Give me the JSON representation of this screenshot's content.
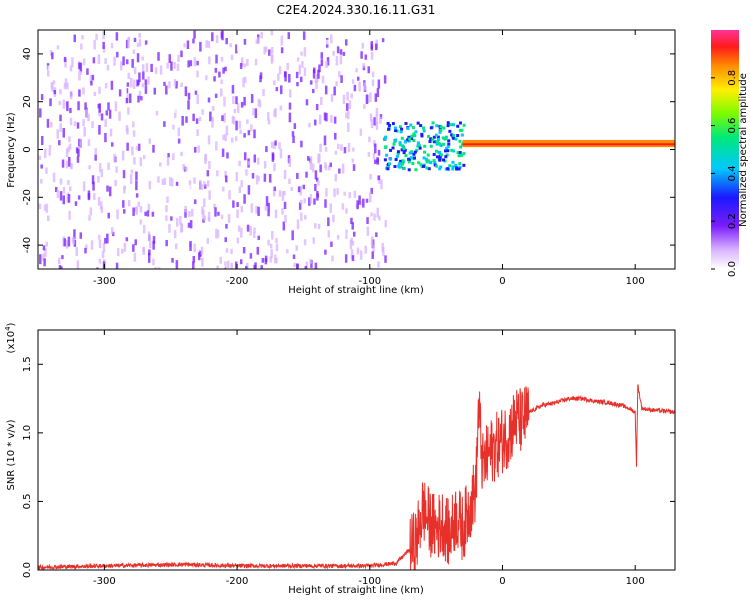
{
  "title": "C2E4.2024.330.16.11.G31",
  "colors": {
    "snr_line": "#e8302a",
    "background": "#ffffff"
  },
  "chart_data": [
    {
      "type": "heatmap",
      "xlabel": "Height of straight line (km)",
      "ylabel": "Frequency (Hz)",
      "xlim": [
        -350,
        130
      ],
      "ylim": [
        -50,
        50
      ],
      "xticks": [
        -300,
        -200,
        -100,
        0,
        100
      ],
      "xtick_labels": [
        "-300",
        "-200",
        "-100",
        "0",
        "100"
      ],
      "yticks": [
        -40,
        -20,
        0,
        20,
        40
      ],
      "ytick_labels": [
        "-40",
        "-20",
        "0",
        "20",
        "40"
      ],
      "colorbar": {
        "label": "Normalized spectral amplitude",
        "range": [
          0,
          1
        ],
        "ticks": [
          0.0,
          0.2,
          0.4,
          0.6,
          0.8
        ],
        "tick_labels": [
          "0.0",
          "0.2",
          "0.4",
          "0.6",
          "0.8"
        ],
        "colormap": "rainbow"
      },
      "regions": [
        {
          "x": [
            -350,
            -88
          ],
          "freq": [
            -50,
            50
          ],
          "amplitude": "0.05-0.25 (noise)"
        },
        {
          "x": [
            -90,
            -30
          ],
          "freq": [
            -8,
            12
          ],
          "amplitude": "0.3-0.6"
        },
        {
          "x": [
            -30,
            130
          ],
          "freq": [
            1,
            4
          ],
          "amplitude": "0.8-1.0 (tone near 2 Hz)"
        }
      ],
      "grid": false
    },
    {
      "type": "line",
      "xlabel": "Height of straight line (km)",
      "ylabel": "SNR (10 * v/v)",
      "y_multiplier": "(x10^4)",
      "multiplier_base": "(x10",
      "multiplier_exp": "4",
      "multiplier_close": ")",
      "xlim": [
        -350,
        130
      ],
      "ylim": [
        0,
        1.75
      ],
      "xticks": [
        -300,
        -200,
        -100,
        0,
        100
      ],
      "xtick_labels": [
        "-300",
        "-200",
        "-100",
        "0",
        "100"
      ],
      "yticks": [
        0.0,
        0.5,
        1.0,
        1.5
      ],
      "ytick_labels": [
        "0.0",
        "0.5",
        "1.0",
        "1.5"
      ],
      "series": [
        {
          "x": [
            -350,
            -300,
            -240,
            -200,
            -150,
            -100,
            -80,
            -65,
            -60,
            -55,
            -50,
            -45,
            -40,
            -35,
            -30,
            -25,
            -20,
            -18,
            -15,
            -10,
            -5,
            0,
            5,
            10,
            15,
            20,
            30,
            40,
            50,
            60,
            70,
            80,
            90,
            95,
            100,
            101,
            102,
            105,
            110,
            120,
            130
          ],
          "y": [
            0.02,
            0.03,
            0.04,
            0.03,
            0.03,
            0.03,
            0.05,
            0.2,
            0.45,
            0.35,
            0.3,
            0.35,
            0.25,
            0.4,
            0.3,
            0.45,
            0.6,
            1.2,
            0.75,
            0.85,
            0.9,
            0.95,
            1.0,
            1.1,
            1.08,
            1.15,
            1.2,
            1.22,
            1.25,
            1.25,
            1.23,
            1.22,
            1.2,
            1.18,
            1.15,
            0.75,
            1.35,
            1.18,
            1.17,
            1.16,
            1.15
          ]
        }
      ],
      "grid": false
    }
  ]
}
